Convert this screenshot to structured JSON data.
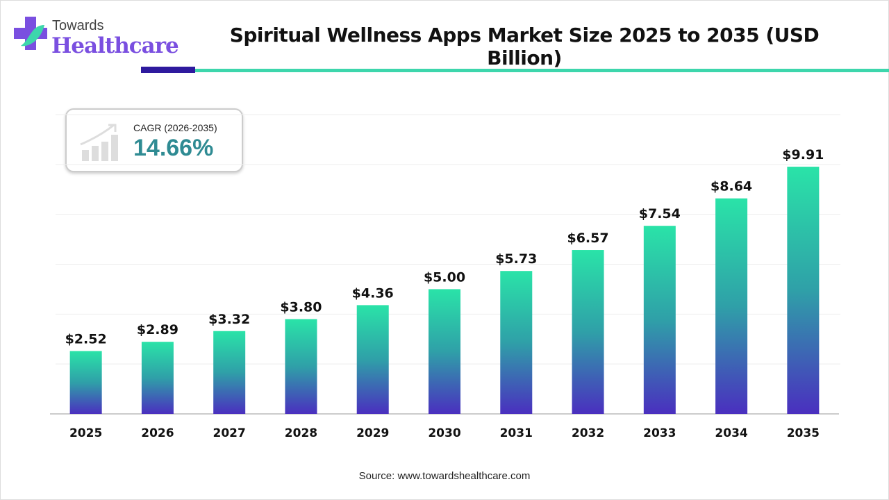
{
  "brand": {
    "line1": "Towards",
    "line2": "Healthcare"
  },
  "colors": {
    "bar_top": "#2ae3a8",
    "bar_bottom": "#4a2fbf",
    "accent_dark": "#2e1a9e",
    "accent_teal": "#3dd6ac",
    "cagr": "#2f8b93"
  },
  "cagr": {
    "label": "CAGR (2026-2035)",
    "value": "14.66%"
  },
  "source": "Source: www.towardshealthcare.com",
  "chart_data": {
    "type": "bar",
    "title": "Spiritual Wellness Apps Market Size 2025 to 2035 (USD Billion)",
    "categories": [
      "2025",
      "2026",
      "2027",
      "2028",
      "2029",
      "2030",
      "2031",
      "2032",
      "2033",
      "2034",
      "2035"
    ],
    "values": [
      2.52,
      2.89,
      3.32,
      3.8,
      4.36,
      5.0,
      5.73,
      6.57,
      7.54,
      8.64,
      9.91
    ],
    "data_labels": [
      "$2.52",
      "$2.89",
      "$3.32",
      "$3.80",
      "$4.36",
      "$5.00",
      "$5.73",
      "$6.57",
      "$7.54",
      "$8.64",
      "$9.91"
    ],
    "xlabel": "",
    "ylabel": "",
    "ylim": [
      0,
      12
    ],
    "grid": true,
    "legend": "none"
  }
}
